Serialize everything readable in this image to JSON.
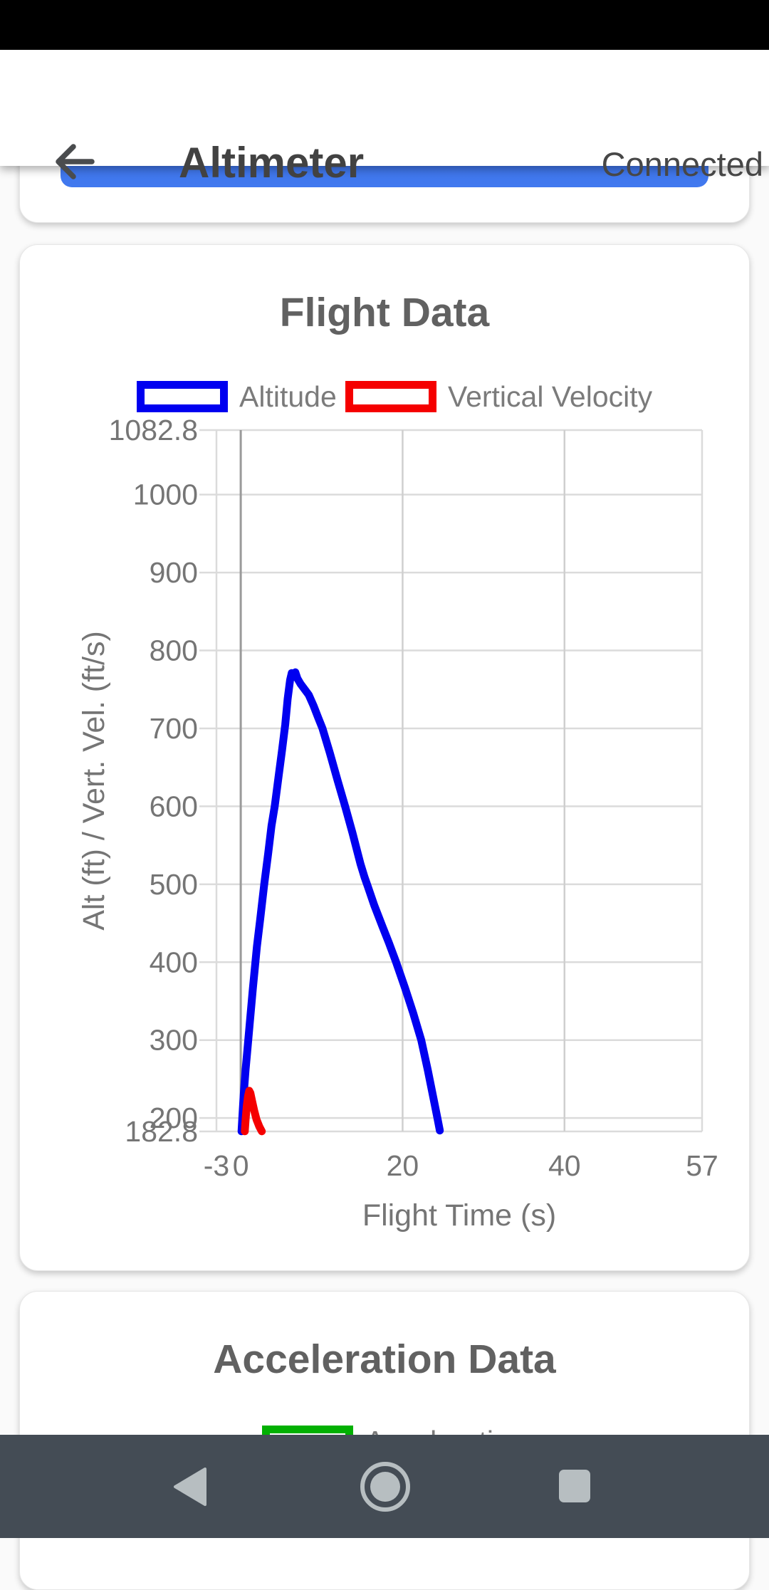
{
  "app_bar": {
    "title": "Altimeter",
    "status": "Connected",
    "icon_color": "#4a4c4e"
  },
  "scroll_content": {
    "top_button_color": "#3e74ea"
  },
  "chart_data": [
    {
      "type": "line",
      "title": "Flight Data",
      "xlabel": "Flight Time (s)",
      "ylabel": "Alt (ft) / Vert. Vel. (ft/s)",
      "xlim": [
        -3,
        57
      ],
      "ylim": [
        182.8,
        1082.8
      ],
      "grid": true,
      "legend_position": "top",
      "x_ticks": [
        {
          "v": -3,
          "label": "-3"
        },
        {
          "v": 0,
          "label": "0"
        },
        {
          "v": 20,
          "label": "20"
        },
        {
          "v": 40,
          "label": "40"
        },
        {
          "v": 57,
          "label": "57"
        }
      ],
      "y_ticks": [
        {
          "v": 182.8,
          "label": "182.8"
        },
        {
          "v": 200,
          "label": "200"
        },
        {
          "v": 300,
          "label": "300"
        },
        {
          "v": 400,
          "label": "400"
        },
        {
          "v": 500,
          "label": "500"
        },
        {
          "v": 600,
          "label": "600"
        },
        {
          "v": 700,
          "label": "700"
        },
        {
          "v": 800,
          "label": "800"
        },
        {
          "v": 900,
          "label": "900"
        },
        {
          "v": 1000,
          "label": "1000"
        },
        {
          "v": 1082.8,
          "label": "1082.8"
        }
      ],
      "x_gridlines": [
        0,
        20,
        40
      ],
      "zero_line_x": 0,
      "colors": {
        "h_gridline": "#dbdbdb",
        "v_gridline": "#cfcfcf",
        "zero_line": "#9a9a9a",
        "tick_text": "#757575",
        "axis_title_text": "#757575"
      },
      "legend": [
        {
          "name": "Altitude",
          "color": "#0000f0"
        },
        {
          "name": "Vertical Velocity",
          "color": "#f50000"
        }
      ],
      "series": [
        {
          "name": "Altitude",
          "color": "#0000f0",
          "points": [
            [
              0.1,
              183
            ],
            [
              0.35,
              228
            ],
            [
              0.6,
              262
            ],
            [
              0.8,
              285
            ],
            [
              1.1,
              320
            ],
            [
              1.5,
              366
            ],
            [
              2.0,
              420
            ],
            [
              2.4,
              455
            ],
            [
              2.9,
              500
            ],
            [
              3.4,
              540
            ],
            [
              3.8,
              575
            ],
            [
              4.2,
              600
            ],
            [
              4.7,
              640
            ],
            [
              5.1,
              672
            ],
            [
              5.5,
              705
            ],
            [
              5.8,
              738
            ],
            [
              6.1,
              762
            ],
            [
              6.3,
              771
            ],
            [
              6.5,
              766
            ],
            [
              6.75,
              772
            ],
            [
              7.0,
              764
            ],
            [
              7.4,
              757
            ],
            [
              7.9,
              750
            ],
            [
              8.4,
              743
            ],
            [
              9.0,
              729
            ],
            [
              9.6,
              713
            ],
            [
              10.1,
              700
            ],
            [
              11.0,
              669
            ],
            [
              12.0,
              632
            ],
            [
              12.9,
              600
            ],
            [
              13.8,
              566
            ],
            [
              14.8,
              526
            ],
            [
              15.3,
              509
            ],
            [
              15.7,
              497
            ],
            [
              16.5,
              473
            ],
            [
              17.5,
              446
            ],
            [
              18.3,
              425
            ],
            [
              19.2,
              400
            ],
            [
              20.3,
              367
            ],
            [
              21.3,
              335
            ],
            [
              22.3,
              300
            ],
            [
              23.1,
              262
            ],
            [
              23.8,
              226
            ],
            [
              24.3,
              200
            ],
            [
              24.6,
              184
            ]
          ]
        },
        {
          "name": "Vertical Velocity",
          "color": "#f50000",
          "points": [
            [
              0.5,
              183
            ],
            [
              0.62,
              200
            ],
            [
              0.75,
              216
            ],
            [
              0.9,
              228
            ],
            [
              1.05,
              235
            ],
            [
              1.2,
              232
            ],
            [
              1.4,
              222
            ],
            [
              1.65,
              210
            ],
            [
              1.95,
              198
            ],
            [
              2.3,
              189
            ],
            [
              2.6,
              183
            ]
          ]
        }
      ]
    },
    {
      "type": "line",
      "title": "Acceleration Data",
      "legend": [
        {
          "name": "Acceleration",
          "color": "#02b002"
        }
      ],
      "series": []
    }
  ],
  "nav_bar": {
    "bg": "#444c55",
    "icon_color": "#b7bec1"
  }
}
